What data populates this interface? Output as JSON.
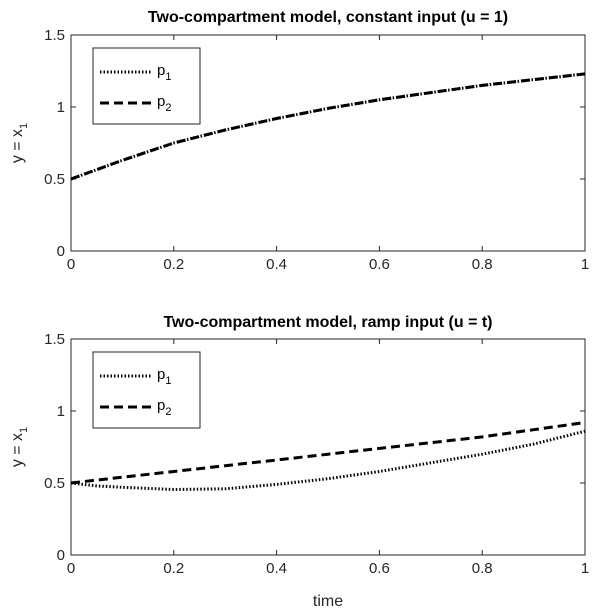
{
  "chart_data": [
    {
      "type": "line",
      "title": "Two-compartment model, constant input (u = 1)",
      "xlabel": "",
      "ylabel": "y = x",
      "ylabel_sub": "1",
      "xlim": [
        0,
        1
      ],
      "ylim": [
        0,
        1.5
      ],
      "xticks": [
        "0",
        "0.2",
        "0.4",
        "0.6",
        "0.8",
        "1"
      ],
      "yticks": [
        "0",
        "0.5",
        "1",
        "1.5"
      ],
      "xtick_values": [
        0,
        0.2,
        0.4,
        0.6,
        0.8,
        1
      ],
      "ytick_values": [
        0,
        0.5,
        1,
        1.5
      ],
      "legend_position": "top-left",
      "x": [
        0,
        0.1,
        0.2,
        0.3,
        0.4,
        0.5,
        0.6,
        0.7,
        0.8,
        0.9,
        1.0
      ],
      "series": [
        {
          "name": "p",
          "name_sub": "1",
          "style": "dotted",
          "values": [
            0.5,
            0.63,
            0.75,
            0.84,
            0.92,
            0.99,
            1.05,
            1.1,
            1.15,
            1.19,
            1.23
          ]
        },
        {
          "name": "p",
          "name_sub": "2",
          "style": "dashed",
          "values": [
            0.5,
            0.63,
            0.75,
            0.84,
            0.92,
            0.99,
            1.05,
            1.1,
            1.15,
            1.19,
            1.23
          ]
        }
      ]
    },
    {
      "type": "line",
      "title": "Two-compartment model, ramp input (u = t)",
      "xlabel": "time",
      "ylabel": "y = x",
      "ylabel_sub": "1",
      "xlim": [
        0,
        1
      ],
      "ylim": [
        0,
        1.5
      ],
      "xticks": [
        "0",
        "0.2",
        "0.4",
        "0.6",
        "0.8",
        "1"
      ],
      "yticks": [
        "0",
        "0.5",
        "1",
        "1.5"
      ],
      "xtick_values": [
        0,
        0.2,
        0.4,
        0.6,
        0.8,
        1
      ],
      "ytick_values": [
        0,
        0.5,
        1,
        1.5
      ],
      "legend_position": "top-left",
      "x": [
        0,
        0.05,
        0.1,
        0.2,
        0.3,
        0.4,
        0.5,
        0.6,
        0.7,
        0.8,
        0.9,
        1.0
      ],
      "series": [
        {
          "name": "p",
          "name_sub": "1",
          "style": "dotted",
          "values": [
            0.5,
            0.48,
            0.47,
            0.455,
            0.46,
            0.49,
            0.53,
            0.58,
            0.64,
            0.7,
            0.77,
            0.86
          ]
        },
        {
          "name": "p",
          "name_sub": "2",
          "style": "dashed",
          "values": [
            0.5,
            0.52,
            0.54,
            0.58,
            0.62,
            0.66,
            0.7,
            0.74,
            0.78,
            0.82,
            0.87,
            0.92
          ]
        }
      ]
    }
  ]
}
